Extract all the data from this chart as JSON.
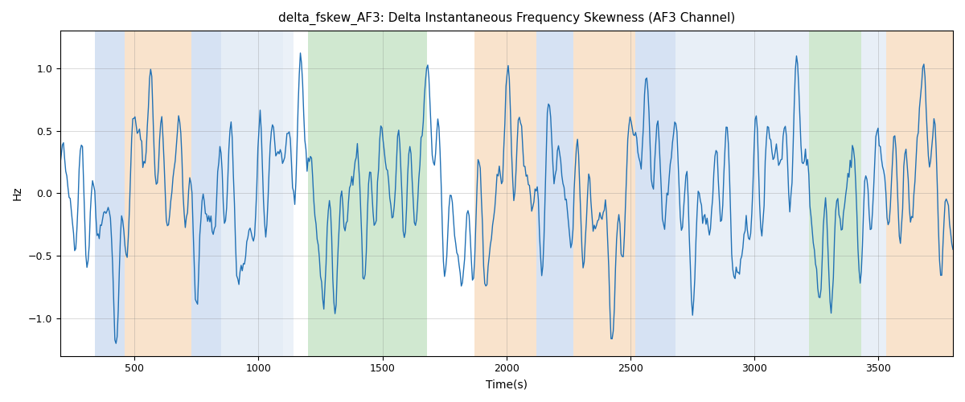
{
  "title": "delta_fskew_AF3: Delta Instantaneous Frequency Skewness (AF3 Channel)",
  "xlabel": "Time(s)",
  "ylabel": "Hz",
  "xlim": [
    200,
    3800
  ],
  "ylim": [
    -1.3,
    1.3
  ],
  "line_color": "#2171b5",
  "line_width": 1.0,
  "background_regions": [
    {
      "xmin": 340,
      "xmax": 460,
      "color": "#aec6e8",
      "alpha": 0.5
    },
    {
      "xmin": 460,
      "xmax": 730,
      "color": "#f5c99a",
      "alpha": 0.5
    },
    {
      "xmin": 730,
      "xmax": 850,
      "color": "#aec6e8",
      "alpha": 0.5
    },
    {
      "xmin": 850,
      "xmax": 1100,
      "color": "#c6d8ed",
      "alpha": 0.45
    },
    {
      "xmin": 1100,
      "xmax": 1140,
      "color": "#c6d8ed",
      "alpha": 0.35
    },
    {
      "xmin": 1200,
      "xmax": 1680,
      "color": "#90c990",
      "alpha": 0.42
    },
    {
      "xmin": 1870,
      "xmax": 2120,
      "color": "#f5c99a",
      "alpha": 0.5
    },
    {
      "xmin": 2120,
      "xmax": 2270,
      "color": "#aec6e8",
      "alpha": 0.5
    },
    {
      "xmin": 2270,
      "xmax": 2520,
      "color": "#f5c99a",
      "alpha": 0.5
    },
    {
      "xmin": 2520,
      "xmax": 2680,
      "color": "#aec6e8",
      "alpha": 0.5
    },
    {
      "xmin": 2680,
      "xmax": 2960,
      "color": "#c6d8ed",
      "alpha": 0.4
    },
    {
      "xmin": 2960,
      "xmax": 3070,
      "color": "#c6d8ed",
      "alpha": 0.4
    },
    {
      "xmin": 3070,
      "xmax": 3220,
      "color": "#c6d8ed",
      "alpha": 0.4
    },
    {
      "xmin": 3220,
      "xmax": 3430,
      "color": "#90c990",
      "alpha": 0.42
    },
    {
      "xmin": 3430,
      "xmax": 3530,
      "color": "#c6d8ed",
      "alpha": 0.4
    },
    {
      "xmin": 3530,
      "xmax": 3800,
      "color": "#f5c99a",
      "alpha": 0.5
    }
  ],
  "seed": 42,
  "n_points": 800
}
